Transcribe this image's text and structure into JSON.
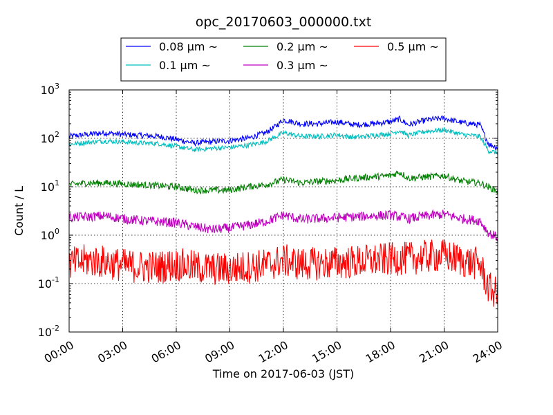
{
  "chart_data": {
    "type": "line",
    "title": "opc_20170603_000000.txt",
    "xlabel": "Time on 2017-06-03 (JST)",
    "ylabel": "Count / L",
    "xlim": [
      0,
      24
    ],
    "ylim": [
      0.01,
      1000
    ],
    "yscale": "log",
    "grid": true,
    "legend_position": "top-center",
    "x_ticks": [
      "00:00",
      "03:00",
      "06:00",
      "09:00",
      "12:00",
      "15:00",
      "18:00",
      "21:00",
      "24:00"
    ],
    "y_ticks": [
      {
        "base": "10",
        "exp": "-2"
      },
      {
        "base": "10",
        "exp": "-1"
      },
      {
        "base": "10",
        "exp": "0"
      },
      {
        "base": "10",
        "exp": "1"
      },
      {
        "base": "10",
        "exp": "2"
      },
      {
        "base": "10",
        "exp": "3"
      }
    ],
    "series": [
      {
        "name": "0.08 μm ~",
        "color": "#0000ff",
        "x": [
          0,
          1,
          2,
          3,
          4,
          5,
          6,
          7,
          8,
          9,
          10,
          11,
          11.5,
          12,
          13,
          14,
          15,
          16,
          17,
          18,
          18.5,
          19,
          20,
          21,
          22,
          23,
          23.5,
          24
        ],
        "y": [
          110,
          120,
          130,
          120,
          115,
          110,
          95,
          80,
          85,
          90,
          100,
          130,
          170,
          240,
          200,
          200,
          220,
          190,
          200,
          220,
          250,
          190,
          240,
          260,
          210,
          190,
          75,
          65
        ]
      },
      {
        "name": "0.1 μm ~",
        "color": "#00bfbf",
        "x": [
          0,
          1,
          2,
          3,
          4,
          5,
          6,
          7,
          8,
          9,
          10,
          11,
          11.5,
          12,
          13,
          14,
          15,
          16,
          17,
          18,
          18.5,
          19,
          20,
          21,
          22,
          23,
          23.5,
          24
        ],
        "y": [
          75,
          82,
          88,
          85,
          80,
          78,
          68,
          58,
          62,
          65,
          72,
          85,
          105,
          130,
          110,
          110,
          118,
          105,
          115,
          125,
          145,
          115,
          140,
          150,
          120,
          110,
          55,
          50
        ]
      },
      {
        "name": "0.2 μm ~",
        "color": "#008000",
        "x": [
          0,
          1,
          2,
          3,
          4,
          5,
          6,
          7,
          8,
          9,
          10,
          11,
          12,
          13,
          14,
          15,
          16,
          17,
          18,
          18.5,
          19,
          20,
          21,
          22,
          23,
          24
        ],
        "y": [
          11,
          12,
          12,
          11.5,
          11,
          10.5,
          10,
          8.5,
          8.5,
          8.5,
          10,
          11,
          14,
          12,
          13,
          13.5,
          15,
          16,
          17,
          20,
          15,
          16,
          17,
          13,
          12,
          8
        ]
      },
      {
        "name": "0.3 μm ~",
        "color": "#bf00bf",
        "x": [
          0,
          1,
          2,
          3,
          4,
          5,
          6,
          7,
          8,
          9,
          10,
          11,
          12,
          13,
          14,
          15,
          16,
          17,
          18,
          19,
          20,
          21,
          22,
          23,
          23.5,
          24
        ],
        "y": [
          2.3,
          2.4,
          2.5,
          2.2,
          2.0,
          1.9,
          1.8,
          1.5,
          1.3,
          1.4,
          1.6,
          1.9,
          2.6,
          2.1,
          2.2,
          2.3,
          2.4,
          2.5,
          2.6,
          2.2,
          2.5,
          2.7,
          2.2,
          2.0,
          1.1,
          0.9
        ]
      },
      {
        "name": "0.5 μm ~",
        "color": "#ff0000",
        "x": [
          0,
          1,
          2,
          3,
          4,
          5,
          6,
          7,
          8,
          9,
          10,
          11,
          12,
          13,
          14,
          15,
          16,
          17,
          18,
          19,
          20,
          21,
          22,
          23,
          23.5,
          24
        ],
        "y": [
          0.25,
          0.3,
          0.28,
          0.24,
          0.22,
          0.22,
          0.25,
          0.22,
          0.2,
          0.2,
          0.22,
          0.24,
          0.3,
          0.25,
          0.26,
          0.27,
          0.28,
          0.3,
          0.32,
          0.33,
          0.36,
          0.38,
          0.3,
          0.25,
          0.08,
          0.06
        ]
      }
    ]
  }
}
